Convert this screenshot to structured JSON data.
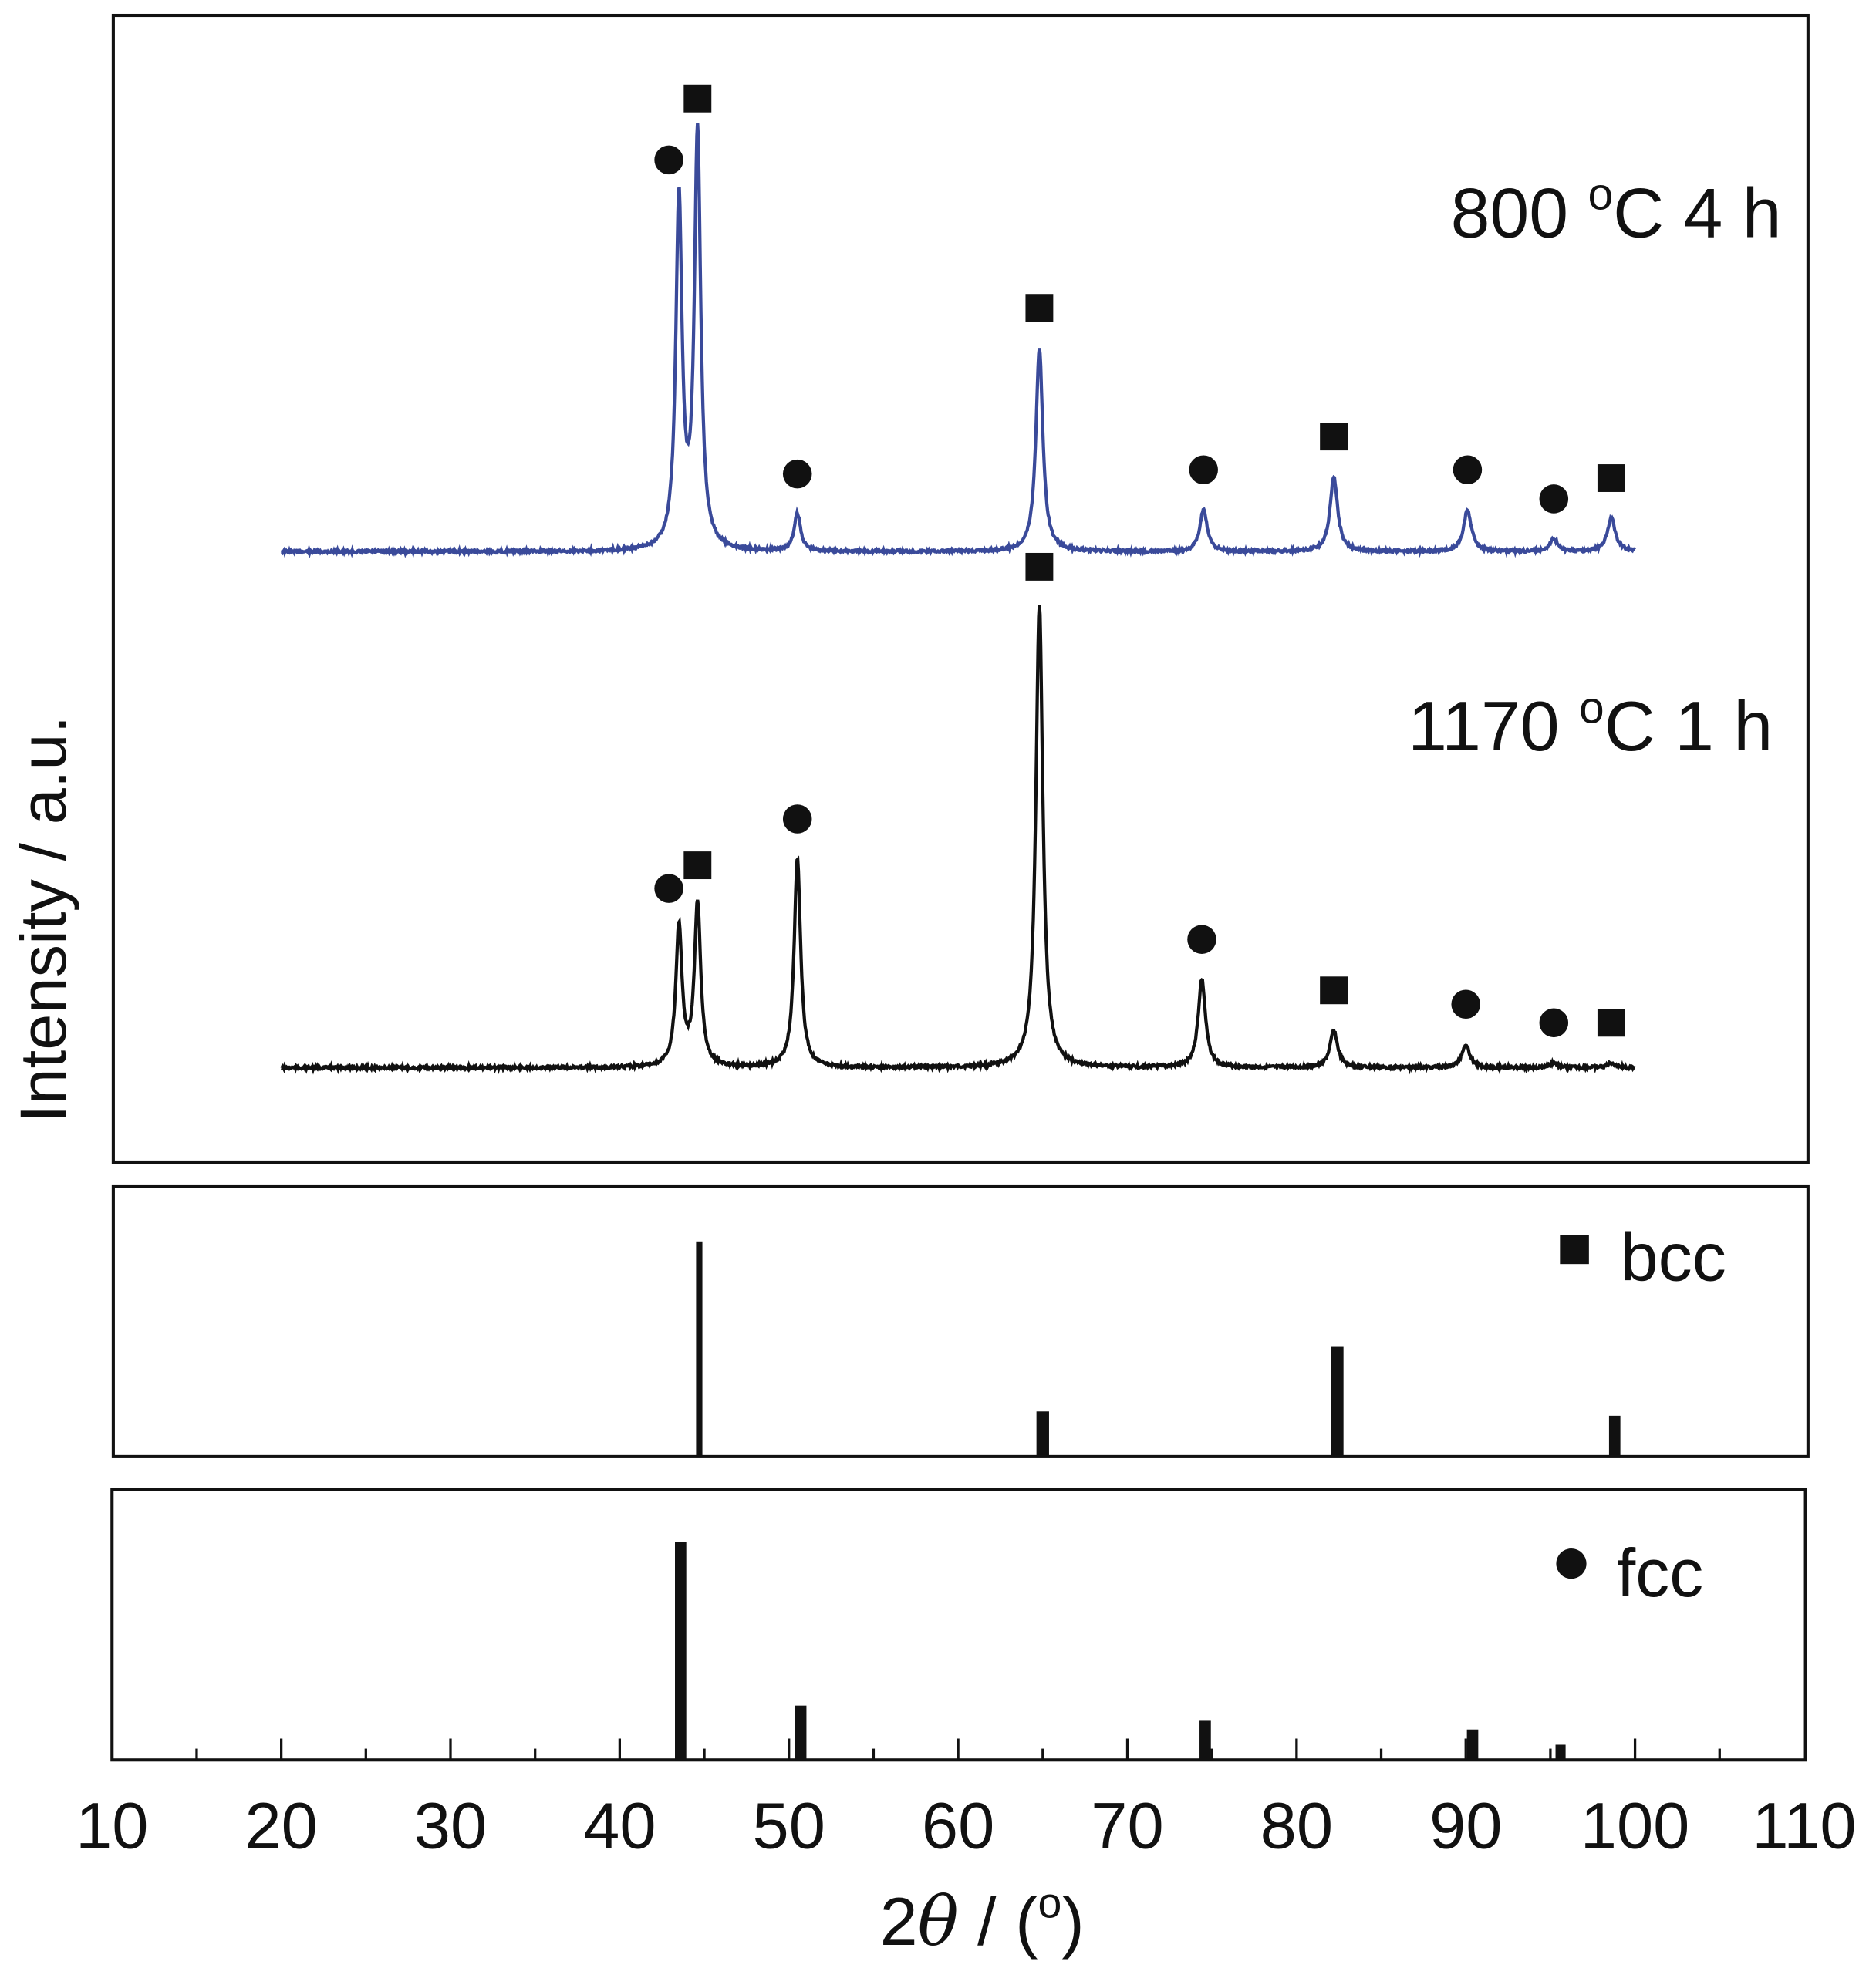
{
  "chart_data": {
    "type": "line",
    "xlabel_prefix": "2",
    "xlabel_symbol": "θ",
    "xlabel_suffix": " / (",
    "xlabel_unit": "o",
    "xlabel_close": ")",
    "ylabel": "Intensity / a.u.",
    "xlim": [
      10,
      110
    ],
    "xticks": [
      10,
      20,
      30,
      40,
      50,
      60,
      70,
      80,
      90,
      100,
      110
    ],
    "minor_tick_step": 5,
    "grid": false,
    "colors": {
      "series_800": "#3a4a9a",
      "series_1170": "#111111",
      "reference": "#111111"
    },
    "series": [
      {
        "name_parts": [
          "800 ",
          "o",
          "C 4 h"
        ],
        "color": "#3a4a9a",
        "x_range": [
          20,
          100
        ],
        "peaks": [
          {
            "x": 43.5,
            "y": 84,
            "phase": "fcc"
          },
          {
            "x": 44.6,
            "y": 100,
            "phase": "bcc"
          },
          {
            "x": 50.5,
            "y": 9,
            "phase": "fcc"
          },
          {
            "x": 64.8,
            "y": 49,
            "phase": "bcc"
          },
          {
            "x": 74.5,
            "y": 10,
            "phase": "fcc"
          },
          {
            "x": 82.2,
            "y": 18,
            "phase": "bcc"
          },
          {
            "x": 90.1,
            "y": 10,
            "phase": "fcc"
          },
          {
            "x": 95.2,
            "y": 3,
            "phase": "fcc"
          },
          {
            "x": 98.6,
            "y": 8,
            "phase": "bcc"
          }
        ]
      },
      {
        "name_parts": [
          "1170 ",
          "o",
          "C 1 h"
        ],
        "color": "#111111",
        "x_range": [
          20,
          100
        ],
        "peaks": [
          {
            "x": 43.5,
            "y": 30,
            "phase": "fcc"
          },
          {
            "x": 44.6,
            "y": 35,
            "phase": "bcc"
          },
          {
            "x": 50.5,
            "y": 45,
            "phase": "fcc"
          },
          {
            "x": 64.8,
            "y": 100,
            "phase": "bcc"
          },
          {
            "x": 74.4,
            "y": 19,
            "phase": "fcc"
          },
          {
            "x": 82.2,
            "y": 8,
            "phase": "bcc"
          },
          {
            "x": 90.0,
            "y": 5,
            "phase": "fcc"
          },
          {
            "x": 95.2,
            "y": 1,
            "phase": "fcc"
          },
          {
            "x": 98.6,
            "y": 1,
            "phase": "bcc"
          }
        ]
      }
    ],
    "references": [
      {
        "name": "bcc",
        "marker": "square",
        "lines": [
          {
            "x": 44.7,
            "y": 100
          },
          {
            "x": 65.0,
            "y": 21
          },
          {
            "x": 82.4,
            "y": 51
          },
          {
            "x": 98.8,
            "y": 19
          }
        ]
      },
      {
        "name": "fcc",
        "marker": "circle",
        "lines": [
          {
            "x": 43.6,
            "y": 100
          },
          {
            "x": 50.7,
            "y": 25
          },
          {
            "x": 74.6,
            "y": 18
          },
          {
            "x": 90.4,
            "y": 14
          },
          {
            "x": 95.6,
            "y": 7
          }
        ]
      }
    ]
  }
}
